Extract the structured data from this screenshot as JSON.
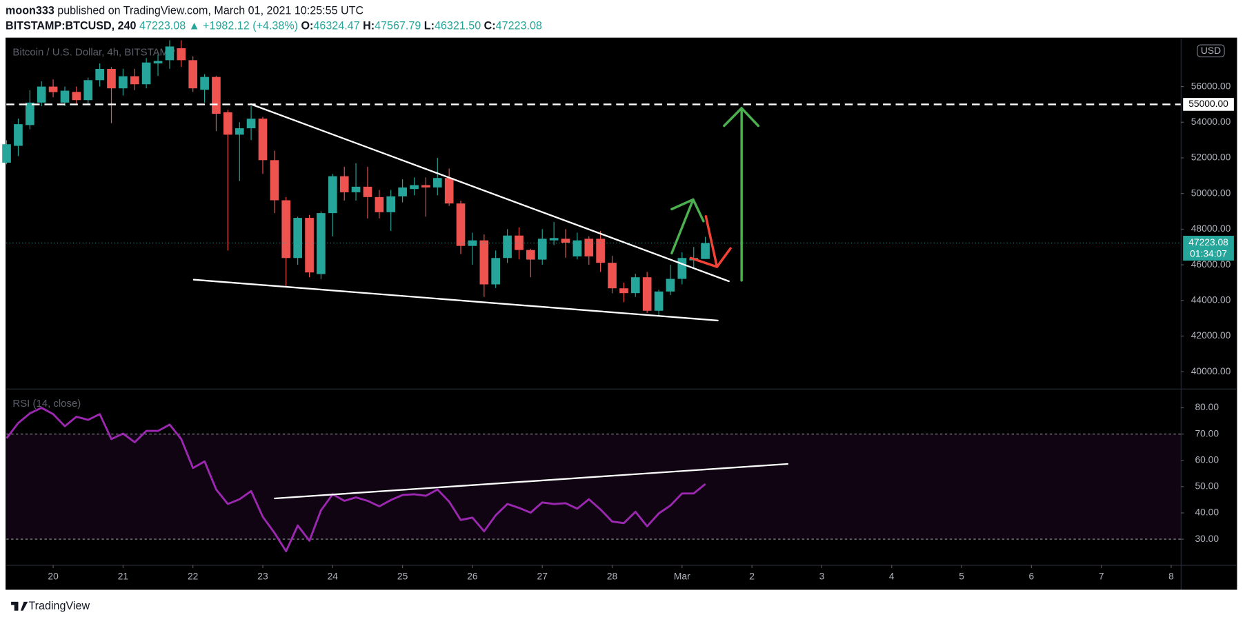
{
  "header": {
    "author": "moon333",
    "published": "published on TradingView.com, March 01, 2021 10:25:55 UTC",
    "symbol": "BITSTAMP:BTCUSD, 240",
    "last": "47223.08",
    "change": "▲ +1982.12 (+4.38%)",
    "ohlc": [
      {
        "label": "O:",
        "value": "46324.47"
      },
      {
        "label": "H:",
        "value": "47567.79"
      },
      {
        "label": "L:",
        "value": "46321.50"
      },
      {
        "label": "C:",
        "value": "47223.08"
      }
    ]
  },
  "footer": "TradingView",
  "chart_data": [
    {
      "type": "candlestick",
      "title": "Bitcoin / U.S. Dollar, 4h, BITSTAMP",
      "currency": "USD",
      "up_color": "#26a69a",
      "down_color": "#ef5350",
      "x": [
        19.333,
        19.5,
        19.667,
        19.833,
        20,
        20.167,
        20.333,
        20.5,
        20.667,
        20.833,
        21,
        21.167,
        21.333,
        21.5,
        21.667,
        21.833,
        22,
        22.167,
        22.333,
        22.5,
        22.667,
        22.833,
        23,
        23.167,
        23.333,
        23.5,
        23.667,
        23.833,
        24,
        24.167,
        24.333,
        24.5,
        24.667,
        24.833,
        25,
        25.167,
        25.333,
        25.5,
        25.667,
        25.833,
        26,
        26.167,
        26.333,
        26.5,
        26.667,
        26.833,
        27,
        27.167,
        27.333,
        27.5,
        27.667,
        27.833,
        28,
        28.167,
        28.333,
        28.5,
        28.667,
        28.833,
        29,
        29.167,
        29.333
      ],
      "open": [
        51730,
        52675,
        53840,
        55100,
        56000,
        55100,
        55700,
        55240,
        56360,
        56990,
        55900,
        56580,
        56130,
        57300,
        57480,
        58150,
        57480,
        55820,
        56540,
        54560,
        53300,
        53660,
        54200,
        51870,
        49620,
        46380,
        48630,
        45480,
        48900,
        50970,
        50070,
        50380,
        49800,
        48950,
        49840,
        50250,
        50470,
        50340,
        50870,
        49440,
        47060,
        47370,
        44900,
        46380,
        47640,
        46830,
        46290,
        47370,
        47460,
        46470,
        47460,
        47460,
        46110,
        44680,
        44410,
        45300,
        43420,
        44500,
        45210,
        46250,
        46324.47
      ],
      "high": [
        52990,
        54200,
        55800,
        56300,
        56400,
        56000,
        56000,
        56500,
        57300,
        57100,
        57000,
        57000,
        57600,
        57800,
        58600,
        58600,
        57700,
        56700,
        56600,
        54700,
        54000,
        54900,
        54300,
        52400,
        49800,
        48700,
        48800,
        49000,
        51100,
        51500,
        51700,
        51500,
        50200,
        50200,
        50800,
        50900,
        50900,
        52000,
        51400,
        49600,
        47800,
        47700,
        46800,
        48000,
        48100,
        46900,
        48000,
        48400,
        48000,
        47800,
        47600,
        47900,
        46500,
        45000,
        45500,
        45600,
        44600,
        46000,
        46700,
        47000,
        47567.79
      ],
      "low": [
        51640,
        52100,
        53600,
        54900,
        55400,
        54900,
        55000,
        55000,
        56000,
        53950,
        55500,
        55800,
        55900,
        56600,
        57000,
        57100,
        55700,
        55100,
        53500,
        46800,
        50700,
        53000,
        51100,
        48900,
        44800,
        46000,
        45300,
        45200,
        47600,
        49600,
        49600,
        48600,
        48600,
        47900,
        49500,
        49900,
        48700,
        49900,
        49300,
        46600,
        46000,
        44200,
        44700,
        46100,
        46300,
        45300,
        46000,
        47100,
        46400,
        46300,
        46000,
        45600,
        44400,
        43900,
        44200,
        43300,
        43100,
        44300,
        44900,
        45800,
        46321.5
      ],
      "close": [
        52765,
        53890,
        55100,
        56000,
        55690,
        55770,
        55240,
        56360,
        56990,
        55900,
        56580,
        56130,
        57350,
        57440,
        58250,
        57480,
        55900,
        56540,
        54470,
        53300,
        53660,
        54200,
        51870,
        49620,
        46380,
        48630,
        45570,
        48900,
        50970,
        50070,
        50380,
        49800,
        48950,
        49840,
        50340,
        50470,
        50340,
        50870,
        49440,
        47060,
        47370,
        44900,
        46380,
        47640,
        46830,
        46290,
        47460,
        47500,
        47240,
        47370,
        46470,
        46110,
        44680,
        44410,
        45300,
        43420,
        44500,
        45210,
        46380,
        46380,
        47223.08
      ],
      "last_price": 47223.08,
      "countdown": "01:34:07",
      "hline": {
        "value": 55000,
        "label": "55000.00"
      },
      "xlim": [
        19.33,
        36.136
      ],
      "xticks": [
        20,
        21,
        22,
        23,
        24,
        25,
        26,
        27,
        28,
        {
          "value": 29,
          "label": "Mar"
        },
        {
          "value": 30,
          "label": "2"
        },
        {
          "value": 31,
          "label": "3"
        },
        {
          "value": 32,
          "label": "4"
        },
        {
          "value": 33,
          "label": "5"
        },
        {
          "value": 34,
          "label": "6"
        },
        {
          "value": 35,
          "label": "7"
        },
        {
          "value": 36,
          "label": "8"
        }
      ],
      "ylim": [
        39050,
        58700
      ],
      "yticks": [
        {
          "value": 40000,
          "label": "40000.00"
        },
        {
          "value": 42000,
          "label": "42000.00"
        },
        {
          "value": 44000,
          "label": "44000.00"
        },
        {
          "value": 46000,
          "label": "46000.00"
        },
        {
          "value": 48000,
          "label": "48000.00"
        },
        {
          "value": 50000,
          "label": "50000.00"
        },
        {
          "value": 52000,
          "label": "52000.00"
        },
        {
          "value": 54000,
          "label": "54000.00"
        },
        {
          "value": 56000,
          "label": "56000.00"
        }
      ],
      "grid": false
    },
    {
      "type": "line",
      "title": "RSI (14, close)",
      "color": "#9c27b0",
      "band": [
        30,
        70
      ],
      "x": [
        19.333,
        19.5,
        19.667,
        19.833,
        20,
        20.167,
        20.333,
        20.5,
        20.667,
        20.833,
        21,
        21.167,
        21.333,
        21.5,
        21.667,
        21.833,
        22,
        22.167,
        22.333,
        22.5,
        22.667,
        22.833,
        23,
        23.167,
        23.333,
        23.5,
        23.667,
        23.833,
        24,
        24.167,
        24.333,
        24.5,
        24.667,
        24.833,
        25,
        25.167,
        25.333,
        25.5,
        25.667,
        25.833,
        26,
        26.167,
        26.333,
        26.5,
        26.667,
        26.833,
        27,
        27.167,
        27.333,
        27.5,
        27.667,
        27.833,
        28,
        28.167,
        28.333,
        28.5,
        28.667,
        28.833,
        29,
        29.167,
        29.333
      ],
      "values": [
        68.4,
        74.2,
        77.9,
        80.0,
        77.6,
        73.0,
        76.6,
        75.4,
        77.6,
        68.1,
        70.2,
        66.9,
        71.2,
        71.2,
        73.6,
        68.1,
        57.1,
        59.6,
        48.9,
        43.4,
        45.2,
        48.3,
        38.5,
        32.4,
        25.4,
        35.2,
        29.4,
        41.0,
        47.1,
        44.6,
        45.9,
        44.6,
        42.5,
        44.9,
        46.8,
        47.1,
        46.5,
        48.9,
        44.3,
        37.3,
        38.2,
        33.0,
        39.1,
        43.4,
        41.9,
        40.1,
        44.0,
        43.4,
        43.7,
        41.6,
        45.2,
        41.3,
        36.7,
        36.1,
        40.4,
        34.9,
        39.8,
        42.8,
        47.4,
        47.4,
        51.0
      ],
      "xlim": [
        19.33,
        36.136
      ],
      "ylim": [
        20.2,
        87
      ],
      "yticks": [
        {
          "value": 30,
          "label": "30.00"
        },
        {
          "value": 40,
          "label": "40.00"
        },
        {
          "value": 50,
          "label": "50.00"
        },
        {
          "value": 60,
          "label": "60.00"
        },
        {
          "value": 70,
          "label": "70.00"
        },
        {
          "value": 80,
          "label": "80.00"
        }
      ]
    }
  ]
}
